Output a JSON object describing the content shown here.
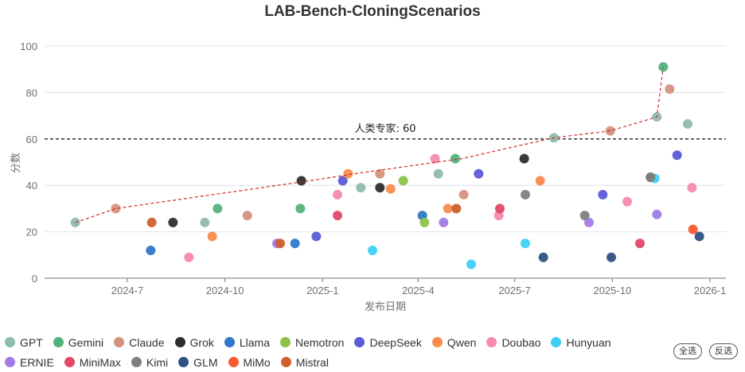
{
  "chart_data": {
    "type": "scatter",
    "title": "LAB-Bench-CloningScenarios",
    "xlabel": "发布日期",
    "ylabel": "分数",
    "ylim": [
      0,
      100
    ],
    "yticks": [
      0,
      20,
      40,
      60,
      80,
      100
    ],
    "xlim": [
      "2024-04",
      "2026-01-20"
    ],
    "xticks": [
      "2024-7",
      "2024-10",
      "2025-1",
      "2025-4",
      "2025-7",
      "2025-10",
      "2026-1"
    ],
    "grid": "horizontal",
    "legend_position": "bottom",
    "reference_line": {
      "label": "人类专家: 60",
      "value": 60,
      "color": "#222222",
      "style": "dashed"
    },
    "frontier": {
      "color": "#d62728",
      "style": "dashed",
      "points": [
        {
          "date": "2024-05-13",
          "value": 24
        },
        {
          "date": "2024-06-20",
          "value": 30
        },
        {
          "date": "2024-12-20",
          "value": 42
        },
        {
          "date": "2025-01-31",
          "value": 45
        },
        {
          "date": "2025-05-12",
          "value": 51.5
        },
        {
          "date": "2025-08-07",
          "value": 60.5
        },
        {
          "date": "2025-09-29",
          "value": 63.5
        },
        {
          "date": "2025-11-12",
          "value": 69.5
        },
        {
          "date": "2025-11-18",
          "value": 91
        }
      ]
    },
    "series": [
      {
        "name": "GPT",
        "color": "#8fbcaf",
        "points": [
          {
            "date": "2024-05-13",
            "value": 24
          },
          {
            "date": "2024-09-12",
            "value": 24
          },
          {
            "date": "2025-02-06",
            "value": 39
          },
          {
            "date": "2025-04-20",
            "value": 45
          },
          {
            "date": "2025-08-07",
            "value": 60.5
          },
          {
            "date": "2025-11-12",
            "value": 69.5
          },
          {
            "date": "2025-12-11",
            "value": 66.5
          }
        ]
      },
      {
        "name": "Gemini",
        "color": "#52b27a",
        "points": [
          {
            "date": "2024-09-24",
            "value": 30
          },
          {
            "date": "2024-12-11",
            "value": 30
          },
          {
            "date": "2025-05-06",
            "value": 51.5
          },
          {
            "date": "2025-11-18",
            "value": 91
          }
        ]
      },
      {
        "name": "Claude",
        "color": "#d4927e",
        "points": [
          {
            "date": "2024-06-20",
            "value": 30
          },
          {
            "date": "2024-10-22",
            "value": 27
          },
          {
            "date": "2025-02-24",
            "value": 45
          },
          {
            "date": "2025-05-14",
            "value": 36
          },
          {
            "date": "2025-09-29",
            "value": 63.5
          },
          {
            "date": "2025-11-24",
            "value": 81.5
          }
        ]
      },
      {
        "name": "Grok",
        "color": "#2e2e2e",
        "points": [
          {
            "date": "2024-08-13",
            "value": 24
          },
          {
            "date": "2024-12-12",
            "value": 42
          },
          {
            "date": "2025-02-24",
            "value": 39
          },
          {
            "date": "2025-07-10",
            "value": 51.5
          },
          {
            "date": "2025-11-06",
            "value": 43.5
          }
        ]
      },
      {
        "name": "Llama",
        "color": "#2f78c8",
        "points": [
          {
            "date": "2024-07-23",
            "value": 12
          },
          {
            "date": "2024-12-06",
            "value": 15
          },
          {
            "date": "2025-04-05",
            "value": 27
          }
        ]
      },
      {
        "name": "Nemotron",
        "color": "#8bc34a",
        "points": [
          {
            "date": "2025-03-18",
            "value": 42
          },
          {
            "date": "2025-04-07",
            "value": 24
          }
        ]
      },
      {
        "name": "DeepSeek",
        "color": "#5b5bd8",
        "points": [
          {
            "date": "2024-12-26",
            "value": 18
          },
          {
            "date": "2025-01-20",
            "value": 42
          },
          {
            "date": "2025-05-28",
            "value": 45
          },
          {
            "date": "2025-09-22",
            "value": 36
          },
          {
            "date": "2025-12-01",
            "value": 53
          }
        ]
      },
      {
        "name": "Qwen",
        "color": "#f98c4c",
        "points": [
          {
            "date": "2024-09-19",
            "value": 18
          },
          {
            "date": "2025-01-25",
            "value": 45
          },
          {
            "date": "2025-03-06",
            "value": 38.5
          },
          {
            "date": "2025-04-29",
            "value": 30
          },
          {
            "date": "2025-07-25",
            "value": 42
          }
        ]
      },
      {
        "name": "Doubao",
        "color": "#f68aaf",
        "points": [
          {
            "date": "2024-08-28",
            "value": 9
          },
          {
            "date": "2025-01-15",
            "value": 36
          },
          {
            "date": "2025-04-17",
            "value": 51.5
          },
          {
            "date": "2025-06-16",
            "value": 27
          },
          {
            "date": "2025-10-15",
            "value": 33
          },
          {
            "date": "2025-12-15",
            "value": 39
          }
        ]
      },
      {
        "name": "Hunyuan",
        "color": "#3dd0f5",
        "points": [
          {
            "date": "2025-02-17",
            "value": 12
          },
          {
            "date": "2025-05-21",
            "value": 6
          },
          {
            "date": "2025-07-11",
            "value": 15
          },
          {
            "date": "2025-11-10",
            "value": 43
          }
        ]
      },
      {
        "name": "ERNIE",
        "color": "#a17be6",
        "points": [
          {
            "date": "2024-11-19",
            "value": 15
          },
          {
            "date": "2025-04-25",
            "value": 24
          },
          {
            "date": "2025-09-09",
            "value": 24
          },
          {
            "date": "2025-11-12",
            "value": 27.5
          }
        ]
      },
      {
        "name": "MiniMax",
        "color": "#e2486a",
        "points": [
          {
            "date": "2025-01-15",
            "value": 27
          },
          {
            "date": "2025-06-17",
            "value": 30
          },
          {
            "date": "2025-10-27",
            "value": 15
          }
        ]
      },
      {
        "name": "Kimi",
        "color": "#7f7f7f",
        "points": [
          {
            "date": "2025-07-11",
            "value": 36
          },
          {
            "date": "2025-09-05",
            "value": 27
          },
          {
            "date": "2025-11-06",
            "value": 43.5
          }
        ]
      },
      {
        "name": "GLM",
        "color": "#2d5283",
        "points": [
          {
            "date": "2025-07-28",
            "value": 9
          },
          {
            "date": "2025-09-30",
            "value": 9
          },
          {
            "date": "2025-12-22",
            "value": 18
          }
        ]
      },
      {
        "name": "MiMo",
        "color": "#fb5a2e",
        "points": [
          {
            "date": "2025-12-16",
            "value": 21
          }
        ]
      },
      {
        "name": "Mistral",
        "color": "#cf5f2e",
        "points": [
          {
            "date": "2024-07-24",
            "value": 24
          },
          {
            "date": "2024-11-22",
            "value": 15
          },
          {
            "date": "2025-05-07",
            "value": 30
          }
        ]
      }
    ]
  },
  "controls": {
    "select_all": "全选",
    "invert": "反选"
  }
}
